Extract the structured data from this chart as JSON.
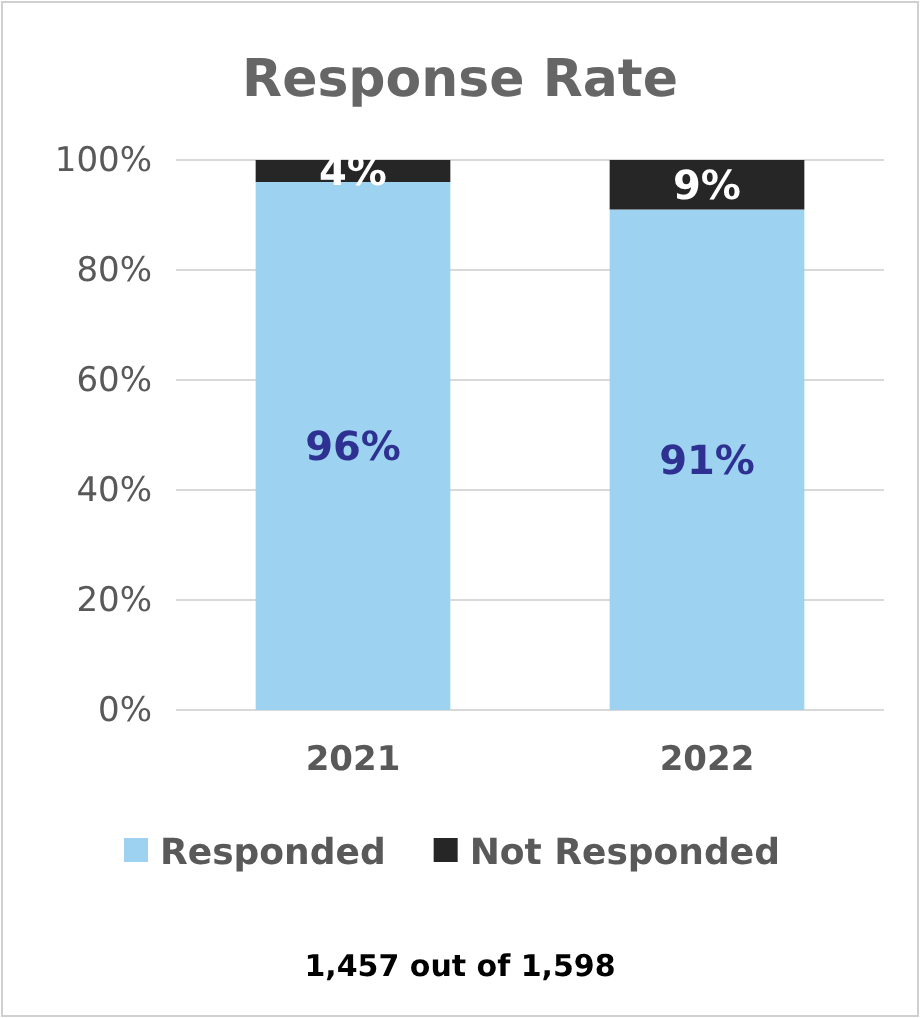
{
  "chart_data": {
    "type": "bar",
    "title": "Response Rate",
    "categories": [
      "2021",
      "2022"
    ],
    "stacked": true,
    "series": [
      {
        "name": "Responded",
        "color": "#9dd3f0",
        "values": [
          96,
          91
        ],
        "value_labels": [
          "96%",
          "91%"
        ]
      },
      {
        "name": "Not Responded",
        "color": "#262626",
        "values": [
          4,
          9
        ],
        "value_labels": [
          "4%",
          "9%"
        ]
      }
    ],
    "ylim": [
      0,
      100
    ],
    "yticks": [
      {
        "value": 0,
        "label": "0%"
      },
      {
        "value": 20,
        "label": "20%"
      },
      {
        "value": 40,
        "label": "40%"
      },
      {
        "value": 60,
        "label": "60%"
      },
      {
        "value": 80,
        "label": "80%"
      },
      {
        "value": 100,
        "label": "100%"
      }
    ],
    "grid": "y",
    "legend": "bottom",
    "annotations": [
      "1,457 out of 1,598"
    ]
  }
}
